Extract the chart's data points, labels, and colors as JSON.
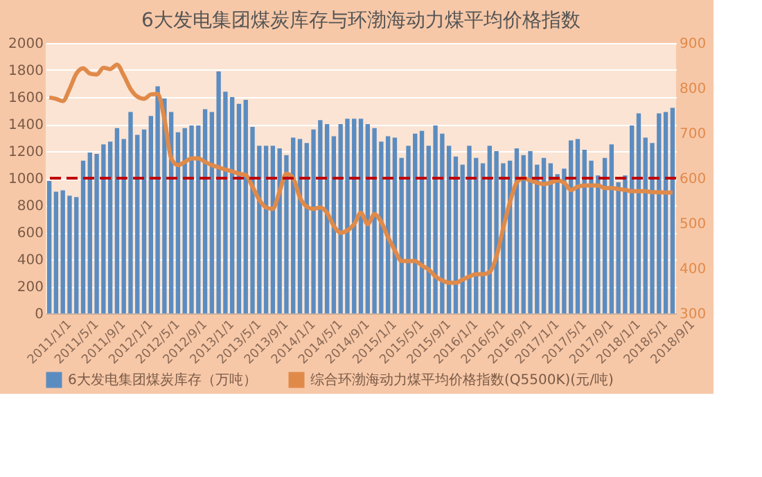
{
  "chart_data": {
    "type": "bar",
    "title": "6大发电集团煤炭库存与环渤海动力煤平均价格指数",
    "categories": [
      "2011/1/1",
      null,
      null,
      null,
      "2011/5/1",
      null,
      null,
      null,
      "2011/9/1",
      null,
      null,
      null,
      "2012/1/1",
      null,
      null,
      null,
      "2012/5/1",
      null,
      null,
      null,
      "2012/9/1",
      null,
      null,
      null,
      "2013/1/1",
      null,
      null,
      null,
      "2013/5/1",
      null,
      null,
      null,
      "2013/9/1",
      null,
      null,
      null,
      "2014/1/1",
      null,
      null,
      null,
      "2014/5/1",
      null,
      null,
      null,
      "2014/9/1",
      null,
      null,
      null,
      "2015/1/1",
      null,
      null,
      null,
      "2015/5/1",
      null,
      null,
      null,
      "2015/9/1",
      null,
      null,
      null,
      "2016/1/1",
      null,
      null,
      null,
      "2016/5/1",
      null,
      null,
      null,
      "2016/9/1",
      null,
      null,
      null,
      "2017/1/1",
      null,
      null,
      null,
      "2017/5/1",
      null,
      null,
      null,
      "2017/9/1",
      null,
      null,
      null,
      "2018/1/1",
      null,
      null,
      null,
      "2018/5/1",
      null,
      null,
      null,
      "2018/9/1"
    ],
    "series": [
      {
        "name": "6大发电集团煤炭库存（万吨）",
        "color": "#5b8cc0",
        "values": [
          980,
          900,
          910,
          870,
          860,
          1130,
          1190,
          1180,
          1250,
          1270,
          1370,
          1290,
          1490,
          1320,
          1360,
          1460,
          1680,
          1590,
          1490,
          1340,
          1370,
          1390,
          1390,
          1510,
          1490,
          1790,
          1640,
          1600,
          1550,
          1580,
          1380,
          1240,
          1240,
          1240,
          1220,
          1170,
          1300,
          1290,
          1260,
          1360,
          1430,
          1400,
          1310,
          1400,
          1440,
          1440,
          1440,
          1400,
          1370,
          1270,
          1310,
          1300,
          1150,
          1240,
          1330,
          1350,
          1240,
          1390,
          1330,
          1240,
          1160,
          1100,
          1240,
          1150,
          1110,
          1240,
          1200,
          1110,
          1130,
          1220,
          1170,
          1200,
          1100,
          1150,
          1110,
          1030,
          1070,
          1280,
          1290,
          1210,
          1130,
          1020,
          1150,
          1250,
          970,
          1020,
          1390,
          1480,
          1300,
          1260,
          1480,
          1490,
          1520
        ]
      },
      {
        "name": "综合环渤海动力煤平均价格指数(Q5500K)(元/吨)",
        "type": "line",
        "axis": "y2",
        "color": "#e08a4a",
        "values": [
          779,
          776,
          771,
          798,
          832,
          844,
          832,
          830,
          845,
          842,
          852,
          828,
          798,
          781,
          776,
          786,
          787,
          731,
          644,
          629,
          636,
          644,
          644,
          636,
          629,
          624,
          619,
          615,
          610,
          607,
          581,
          552,
          535,
          532,
          571,
          610,
          600,
          557,
          537,
          532,
          535,
          523,
          494,
          479,
          484,
          498,
          523,
          498,
          520,
          503,
          469,
          440,
          416,
          416,
          416,
          406,
          397,
          382,
          373,
          368,
          368,
          375,
          382,
          387,
          387,
          392,
          426,
          489,
          547,
          590,
          600,
          595,
          590,
          587,
          590,
          595,
          590,
          574,
          581,
          584,
          584,
          584,
          578,
          578,
          576,
          574,
          571,
          571,
          571,
          569,
          569,
          568,
          568
        ]
      }
    ],
    "ylim": [
      0,
      2000
    ],
    "yticks": [
      0,
      200,
      400,
      600,
      800,
      1000,
      1200,
      1400,
      1600,
      1800,
      2000
    ],
    "y2lim": [
      300,
      900
    ],
    "y2ticks": [
      300,
      400,
      500,
      600,
      700,
      800,
      900
    ],
    "ref_lines": [
      {
        "axis": "y",
        "value": 1000,
        "color": "#c00000",
        "line_style": "dashed"
      }
    ],
    "grid": "y",
    "legend": "bottom"
  }
}
